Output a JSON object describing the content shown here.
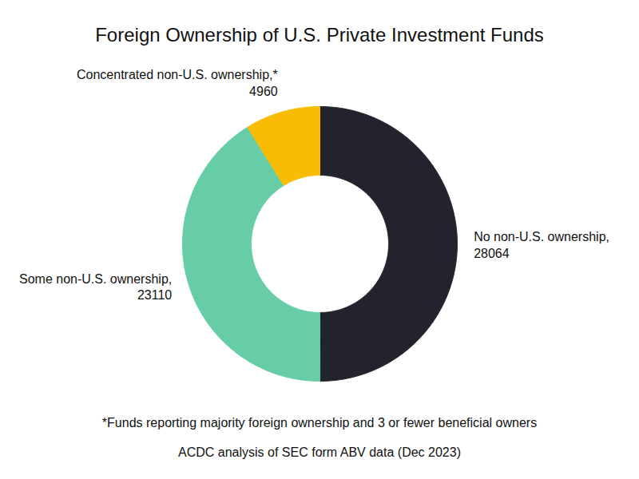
{
  "chart_data": {
    "type": "pie",
    "title": "Foreign Ownership of U.S. Private Investment Funds",
    "categories": [
      "No non-U.S. ownership,",
      "Some non-U.S. ownership,",
      "Concentrated non-U.S. ownership,*"
    ],
    "values": [
      28064,
      23110,
      4960
    ],
    "colors": [
      "#23232e",
      "#66cda6",
      "#f9bc05"
    ],
    "data_labels": true,
    "footnote": "*Funds reporting majority foreign ownership and 3 or fewer beneficial owners",
    "source": "ACDC analysis of SEC form ABV data (Dec 2023)"
  }
}
